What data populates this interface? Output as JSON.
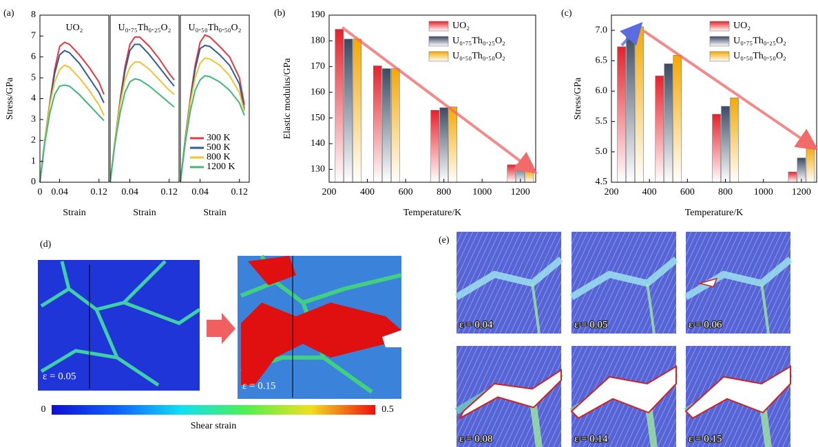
{
  "chart_data": [
    {
      "type": "line",
      "label": "(a)",
      "title": "UO₂",
      "xlabel": "Strain",
      "ylabel": "Stress/GPa",
      "x": [
        0,
        0.01,
        0.02,
        0.03,
        0.04,
        0.05,
        0.06,
        0.08,
        0.1,
        0.12,
        0.13
      ],
      "xlim": [
        0,
        0.14
      ],
      "xticks": [
        0,
        0.04,
        0.12
      ],
      "ylim": [
        0,
        8
      ],
      "yticks": [
        0,
        1,
        2,
        3,
        4,
        5,
        6,
        7,
        8
      ],
      "series": [
        {
          "name": "300 K",
          "color": "#e8383d",
          "values": [
            0,
            2.0,
            3.8,
            5.4,
            6.5,
            6.7,
            6.6,
            6.1,
            5.5,
            4.8,
            4.2
          ]
        },
        {
          "name": "500 K",
          "color": "#2e5c9a",
          "values": [
            0,
            2.0,
            3.8,
            5.2,
            6.1,
            6.3,
            6.2,
            5.7,
            5.0,
            4.3,
            3.8
          ]
        },
        {
          "name": "800 K",
          "color": "#f2c12e",
          "values": [
            0,
            2.0,
            3.7,
            4.8,
            5.4,
            5.6,
            5.5,
            5.0,
            4.4,
            3.7,
            3.2
          ]
        },
        {
          "name": "1200 K",
          "color": "#3cb878",
          "values": [
            0,
            1.9,
            3.3,
            4.2,
            4.6,
            4.65,
            4.6,
            4.2,
            3.7,
            3.2,
            2.95
          ]
        }
      ]
    },
    {
      "type": "line",
      "title": "U₀.₇₅Th₀.₂₅O₂",
      "xlabel": "Strain",
      "x": [
        0,
        0.01,
        0.02,
        0.03,
        0.04,
        0.05,
        0.06,
        0.08,
        0.1,
        0.12,
        0.13
      ],
      "xlim": [
        0,
        0.14
      ],
      "xticks": [
        0.04,
        0.12
      ],
      "ylim": [
        0,
        8
      ],
      "series": [
        {
          "name": "300 K",
          "color": "#e8383d",
          "values": [
            0,
            2.0,
            3.9,
            5.5,
            6.6,
            6.95,
            6.95,
            6.5,
            5.9,
            5.2,
            4.9
          ]
        },
        {
          "name": "500 K",
          "color": "#2e5c9a",
          "values": [
            0,
            2.0,
            3.8,
            5.3,
            6.3,
            6.6,
            6.6,
            6.1,
            5.5,
            4.9,
            4.6
          ]
        },
        {
          "name": "800 K",
          "color": "#f2c12e",
          "values": [
            0,
            2.0,
            3.7,
            4.9,
            5.5,
            5.75,
            5.75,
            5.4,
            4.9,
            4.4,
            4.2
          ]
        },
        {
          "name": "1200 K",
          "color": "#3cb878",
          "values": [
            0,
            1.9,
            3.3,
            4.3,
            4.8,
            4.95,
            4.9,
            4.6,
            4.2,
            3.8,
            3.6
          ]
        }
      ]
    },
    {
      "type": "line",
      "title": "U₀.₅₀Th₀.₅₀O₂",
      "xlabel": "Strain",
      "legend": "lower right",
      "x": [
        0,
        0.01,
        0.02,
        0.03,
        0.04,
        0.05,
        0.06,
        0.08,
        0.1,
        0.12,
        0.13
      ],
      "xlim": [
        0,
        0.14
      ],
      "xticks": [
        0.04,
        0.12
      ],
      "ylim": [
        0,
        8
      ],
      "series": [
        {
          "name": "300 K",
          "color": "#e8383d",
          "values": [
            0,
            2.1,
            4.0,
            5.6,
            6.7,
            7.05,
            6.95,
            6.5,
            6.0,
            5.0,
            3.7
          ]
        },
        {
          "name": "500 K",
          "color": "#2e5c9a",
          "values": [
            0,
            2.1,
            3.9,
            5.4,
            6.4,
            6.55,
            6.5,
            6.1,
            5.6,
            4.7,
            3.5
          ]
        },
        {
          "name": "800 K",
          "color": "#f2c12e",
          "values": [
            0,
            2.0,
            3.8,
            5.0,
            5.7,
            5.95,
            5.9,
            5.6,
            5.1,
            4.3,
            3.4
          ]
        },
        {
          "name": "1200 K",
          "color": "#3cb878",
          "values": [
            0,
            1.9,
            3.4,
            4.4,
            4.9,
            5.1,
            5.05,
            4.8,
            4.4,
            3.8,
            3.2
          ]
        }
      ]
    },
    {
      "type": "bar",
      "label": "(b)",
      "xlabel": "Temperature/K",
      "ylabel": "Elastic modulus/GPa",
      "legend": "upper right",
      "x": [
        300,
        500,
        800,
        1200
      ],
      "xlim": [
        200,
        1280
      ],
      "xticks": [
        200,
        400,
        600,
        800,
        1000,
        1200
      ],
      "ylim": [
        125,
        190
      ],
      "yticks": [
        130,
        140,
        150,
        160,
        170,
        180,
        190
      ],
      "series": [
        {
          "name": "UO₂",
          "color": "#e8202a",
          "values": [
            184.5,
            170.3,
            153,
            131.8
          ]
        },
        {
          "name": "U₀.₇₅Th₀.₂₅O₂",
          "color": "#3b4a63",
          "values": [
            180.7,
            169.2,
            154,
            132
          ]
        },
        {
          "name": "U₀.₅₀Th₀.₅₀O₂",
          "color": "#f5a800",
          "values": [
            180.7,
            169.2,
            154.3,
            129.5
          ]
        }
      ]
    },
    {
      "type": "bar",
      "label": "(c)",
      "xlabel": "Temperature/K",
      "ylabel": "Stress/GPa",
      "legend": "upper right",
      "x": [
        300,
        500,
        800,
        1200
      ],
      "xlim": [
        200,
        1280
      ],
      "xticks": [
        200,
        400,
        600,
        800,
        1000,
        1200
      ],
      "ylim": [
        4.5,
        7.25
      ],
      "yticks": [
        4.5,
        {
          "value": 5,
          "label": "5.0"
        },
        5.5,
        {
          "value": 6,
          "label": "6.0"
        },
        6.5,
        {
          "value": 7,
          "label": "7.0"
        }
      ],
      "series": [
        {
          "name": "UO₂",
          "color": "#e8202a",
          "values": [
            6.73,
            6.25,
            5.62,
            4.67
          ]
        },
        {
          "name": "U₀.₇₅Th₀.₂₅O₂",
          "color": "#3b4a63",
          "values": [
            6.97,
            6.45,
            5.75,
            4.9
          ]
        },
        {
          "name": "U₀.₅₀Th₀.₅₀O₂",
          "color": "#f5a800",
          "values": [
            7.06,
            6.59,
            5.89,
            5.08
          ]
        }
      ]
    }
  ],
  "panel_d": {
    "label": "(d)",
    "captions": [
      "ε = 0.05",
      "ε = 0.15"
    ],
    "colorbar": {
      "range": [
        0,
        0.5
      ],
      "label": "Shear strain"
    }
  },
  "panel_e": {
    "label": "(e)",
    "captions": [
      "ε = 0.04",
      "ε = 0.05",
      "ε = 0.06",
      "ε = 0.08",
      "ε = 0.14",
      "ε = 0.15"
    ]
  }
}
